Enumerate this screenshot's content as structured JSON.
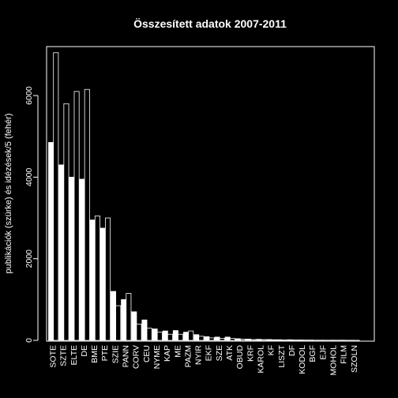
{
  "chart_data": {
    "type": "bar",
    "title": "Összesített adatok 2007-2011",
    "xlabel": "",
    "ylabel": "publikációk (szürke) és idézések/5 (fehér)",
    "ylim": [
      0,
      7200
    ],
    "yticks": [
      0,
      2000,
      4000,
      6000
    ],
    "grid": false,
    "legend": "none",
    "categories": [
      "SOTE",
      "SZTE",
      "ELTE",
      "DE",
      "BME",
      "PTE",
      "SZIE",
      "PANN",
      "CORV",
      "CEU",
      "NYME",
      "KAP",
      "ME",
      "PAZM",
      "NYIR",
      "EKF",
      "SZE",
      "ATK",
      "OBUD",
      "KRF",
      "KAROL",
      "KF",
      "LISZT",
      "DF",
      "KODOL",
      "BGF",
      "EJF",
      "MOHOL",
      "FILM",
      "SZOLN"
    ],
    "series": [
      {
        "values": [
          4850,
          4300,
          4000,
          3950,
          2950,
          2750,
          1200,
          1000,
          700,
          500,
          280,
          230,
          240,
          200,
          140,
          90,
          80,
          80,
          40,
          30,
          25,
          20,
          15,
          15,
          10,
          8,
          5,
          5,
          5,
          3
        ]
      },
      {
        "values": [
          7050,
          5800,
          6100,
          6150,
          3050,
          3000,
          850,
          1150,
          400,
          300,
          200,
          150,
          150,
          230,
          100,
          60,
          50,
          50,
          30,
          20,
          20,
          15,
          10,
          10,
          8,
          5,
          4,
          4,
          3,
          2
        ]
      }
    ],
    "colors": {
      "background": "#000000",
      "series1_fill": "#ffffff",
      "series2_fill": "#000000",
      "stroke": "#ffffff"
    }
  }
}
